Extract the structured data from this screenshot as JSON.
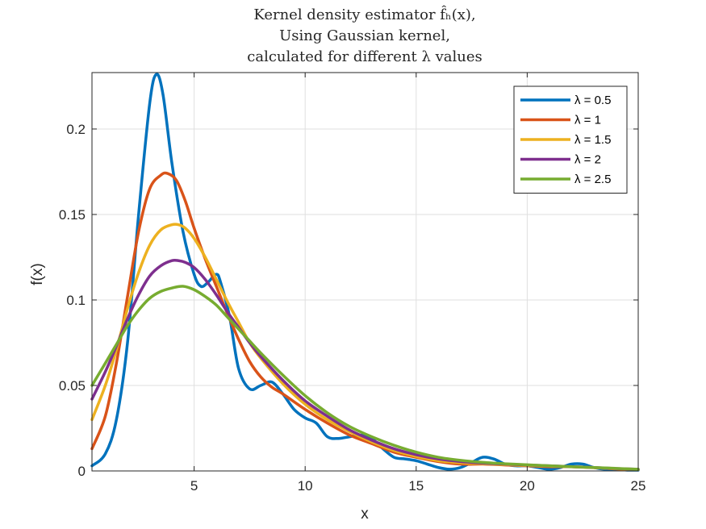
{
  "chart_data": {
    "type": "line",
    "title_lines": [
      "Kernel density estimator f̂ₕ(x),",
      "Using Gaussian kernel,",
      "calculated for different λ values"
    ],
    "xlabel": "x",
    "ylabel": "f(x)",
    "xlim": [
      0.4,
      25
    ],
    "ylim": [
      0,
      0.233
    ],
    "xticks": [
      5,
      10,
      15,
      20,
      25
    ],
    "xtick_labels": [
      "5",
      "10",
      "15",
      "20",
      "25"
    ],
    "yticks": [
      0,
      0.05,
      0.1,
      0.15,
      0.2
    ],
    "ytick_labels": [
      "0",
      "0.05",
      "0.1",
      "0.15",
      "0.2"
    ],
    "grid": true,
    "legend_position": "top-right",
    "series": [
      {
        "name": "λ = 0.5",
        "color": "#0072BD",
        "x": [
          0.4,
          1.0,
          1.5,
          2.0,
          2.5,
          3.0,
          3.3,
          3.6,
          4.0,
          4.5,
          5.0,
          5.3,
          5.6,
          6.0,
          6.2,
          6.6,
          7.0,
          7.5,
          8.0,
          8.5,
          9.0,
          9.5,
          10.0,
          10.5,
          11.0,
          11.5,
          12.0,
          12.5,
          13.0,
          13.5,
          14.0,
          14.5,
          15.0,
          15.5,
          16.0,
          16.5,
          17.0,
          17.5,
          18.0,
          18.5,
          19.0,
          19.5,
          20.0,
          20.5,
          21.0,
          21.5,
          22.0,
          22.5,
          23.0,
          23.5,
          24.0,
          24.5,
          25.0
        ],
        "y": [
          0.003,
          0.01,
          0.03,
          0.075,
          0.15,
          0.215,
          0.232,
          0.22,
          0.18,
          0.14,
          0.115,
          0.108,
          0.11,
          0.115,
          0.11,
          0.09,
          0.06,
          0.048,
          0.05,
          0.052,
          0.045,
          0.036,
          0.031,
          0.028,
          0.02,
          0.019,
          0.02,
          0.021,
          0.019,
          0.013,
          0.008,
          0.007,
          0.006,
          0.004,
          0.002,
          0.001,
          0.002,
          0.005,
          0.008,
          0.007,
          0.004,
          0.003,
          0.003,
          0.002,
          0.001,
          0.002,
          0.004,
          0.004,
          0.002,
          0.001,
          0.001,
          0.0005,
          0.0005
        ]
      },
      {
        "name": "λ = 1",
        "color": "#D95319",
        "x": [
          0.4,
          1.0,
          1.5,
          2.0,
          2.5,
          3.0,
          3.5,
          3.8,
          4.2,
          4.6,
          5.0,
          5.5,
          6.0,
          6.5,
          7.0,
          7.5,
          8.0,
          8.5,
          9.0,
          10.0,
          11.0,
          12.0,
          13.0,
          14.0,
          15.0,
          16.0,
          17.0,
          18.0,
          19.0,
          20.0,
          21.0,
          22.0,
          23.0,
          24.0,
          25.0
        ],
        "y": [
          0.013,
          0.032,
          0.063,
          0.102,
          0.14,
          0.165,
          0.173,
          0.174,
          0.17,
          0.158,
          0.142,
          0.124,
          0.108,
          0.092,
          0.077,
          0.064,
          0.055,
          0.049,
          0.045,
          0.036,
          0.028,
          0.021,
          0.016,
          0.011,
          0.008,
          0.0055,
          0.004,
          0.004,
          0.0035,
          0.003,
          0.0025,
          0.0025,
          0.002,
          0.0012,
          0.0008
        ]
      },
      {
        "name": "λ = 1.5",
        "color": "#EDB120",
        "x": [
          0.4,
          1.0,
          1.5,
          2.0,
          2.5,
          3.0,
          3.5,
          4.0,
          4.3,
          4.6,
          5.0,
          5.5,
          6.0,
          6.5,
          7.0,
          7.5,
          8.0,
          9.0,
          10.0,
          11.0,
          12.0,
          13.0,
          14.0,
          15.0,
          16.0,
          17.0,
          18.0,
          19.0,
          20.0,
          21.0,
          22.0,
          23.0,
          24.0,
          25.0
        ],
        "y": [
          0.03,
          0.05,
          0.071,
          0.095,
          0.116,
          0.132,
          0.141,
          0.144,
          0.144,
          0.142,
          0.136,
          0.125,
          0.112,
          0.099,
          0.087,
          0.075,
          0.066,
          0.051,
          0.039,
          0.03,
          0.023,
          0.017,
          0.012,
          0.0085,
          0.006,
          0.0048,
          0.0042,
          0.0037,
          0.0032,
          0.0028,
          0.0024,
          0.0019,
          0.0013,
          0.0009
        ]
      },
      {
        "name": "λ = 2",
        "color": "#7E2F8E",
        "x": [
          0.4,
          1.0,
          1.5,
          2.0,
          2.5,
          3.0,
          3.5,
          4.0,
          4.3,
          4.6,
          5.0,
          5.5,
          6.0,
          6.5,
          7.0,
          7.5,
          8.0,
          9.0,
          10.0,
          11.0,
          12.0,
          13.0,
          14.0,
          15.0,
          16.0,
          17.0,
          18.0,
          19.0,
          20.0,
          21.0,
          22.0,
          23.0,
          24.0,
          25.0
        ],
        "y": [
          0.042,
          0.058,
          0.073,
          0.089,
          0.103,
          0.114,
          0.12,
          0.123,
          0.123,
          0.122,
          0.119,
          0.112,
          0.103,
          0.093,
          0.084,
          0.075,
          0.067,
          0.053,
          0.041,
          0.032,
          0.024,
          0.018,
          0.013,
          0.0095,
          0.007,
          0.0055,
          0.0046,
          0.004,
          0.0035,
          0.003,
          0.0025,
          0.002,
          0.0014,
          0.001
        ]
      },
      {
        "name": "λ = 2.5",
        "color": "#77AC30",
        "x": [
          0.4,
          1.0,
          1.5,
          2.0,
          2.5,
          3.0,
          3.5,
          4.0,
          4.5,
          5.0,
          5.5,
          6.0,
          6.5,
          7.0,
          7.5,
          8.0,
          9.0,
          10.0,
          11.0,
          12.0,
          13.0,
          14.0,
          15.0,
          16.0,
          17.0,
          18.0,
          19.0,
          20.0,
          21.0,
          22.0,
          23.0,
          24.0,
          25.0
        ],
        "y": [
          0.05,
          0.063,
          0.074,
          0.085,
          0.094,
          0.101,
          0.105,
          0.107,
          0.108,
          0.106,
          0.102,
          0.097,
          0.09,
          0.083,
          0.076,
          0.069,
          0.056,
          0.044,
          0.034,
          0.026,
          0.02,
          0.015,
          0.011,
          0.008,
          0.0062,
          0.005,
          0.0042,
          0.0036,
          0.003,
          0.0025,
          0.002,
          0.0015,
          0.001
        ]
      }
    ]
  }
}
